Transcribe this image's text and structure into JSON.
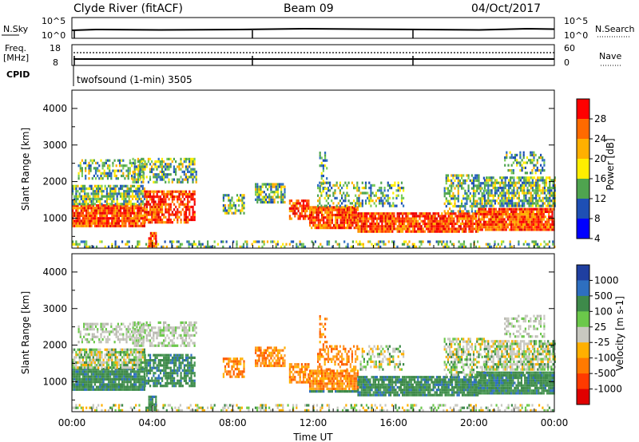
{
  "header": {
    "station": "Clyde River (fitACF)",
    "beam": "Beam 09",
    "date": "04/Oct/2017"
  },
  "noise_panel": {
    "left_label": "N.Sky",
    "right_label": "N.Search",
    "left_ticks": [
      "10^5",
      "10^0"
    ],
    "right_ticks": [
      "10^5",
      "10^0"
    ]
  },
  "freq_panel": {
    "left_label_1": "Freq.",
    "left_label_2": "[MHz]",
    "right_label": "Nave",
    "left_ticks": [
      "18",
      "8"
    ],
    "right_ticks": [
      "60",
      "0"
    ],
    "cpid_label": "CPID",
    "cpid_text": "twofsound (1-min) 3505"
  },
  "chart_data": [
    {
      "type": "heatmap",
      "quantity": "Power",
      "ylabel": "Slant Range [km]",
      "yticks": [
        1000,
        2000,
        3000,
        4000
      ],
      "ylim": [
        180,
        4500
      ],
      "xlim_hours": [
        0,
        24
      ],
      "colorbar_label": "Power [dB]",
      "colorbar_ticks": [
        "28",
        "24",
        "20",
        "16",
        "12",
        "8",
        "4"
      ],
      "colorbar_colors": [
        "#ff0000",
        "#ff6a00",
        "#ffb000",
        "#ffee00",
        "#4fa44f",
        "#1e4fb4",
        "#0000ff"
      ]
    },
    {
      "type": "heatmap",
      "quantity": "Velocity",
      "ylabel": "Slant Range [km]",
      "yticks": [
        1000,
        2000,
        3000,
        4000
      ],
      "ylim": [
        180,
        4500
      ],
      "xlim_hours": [
        0,
        24
      ],
      "colorbar_label": "Velocity [m s-1]",
      "colorbar_ticks": [
        "1000",
        "500",
        "100",
        "25",
        "-25",
        "-100",
        "-500",
        "-1000"
      ],
      "colorbar_colors": [
        "#1f3fa0",
        "#2e6fc0",
        "#3e8a4a",
        "#6bc84a",
        "#c8c8c0",
        "#ffb000",
        "#ff7a00",
        "#ff3a00",
        "#e00000"
      ]
    }
  ],
  "xaxis": {
    "ticks": [
      "00:00",
      "04:00",
      "08:00",
      "12:00",
      "16:00",
      "20:00",
      "00:00"
    ],
    "label": "Time UT"
  }
}
